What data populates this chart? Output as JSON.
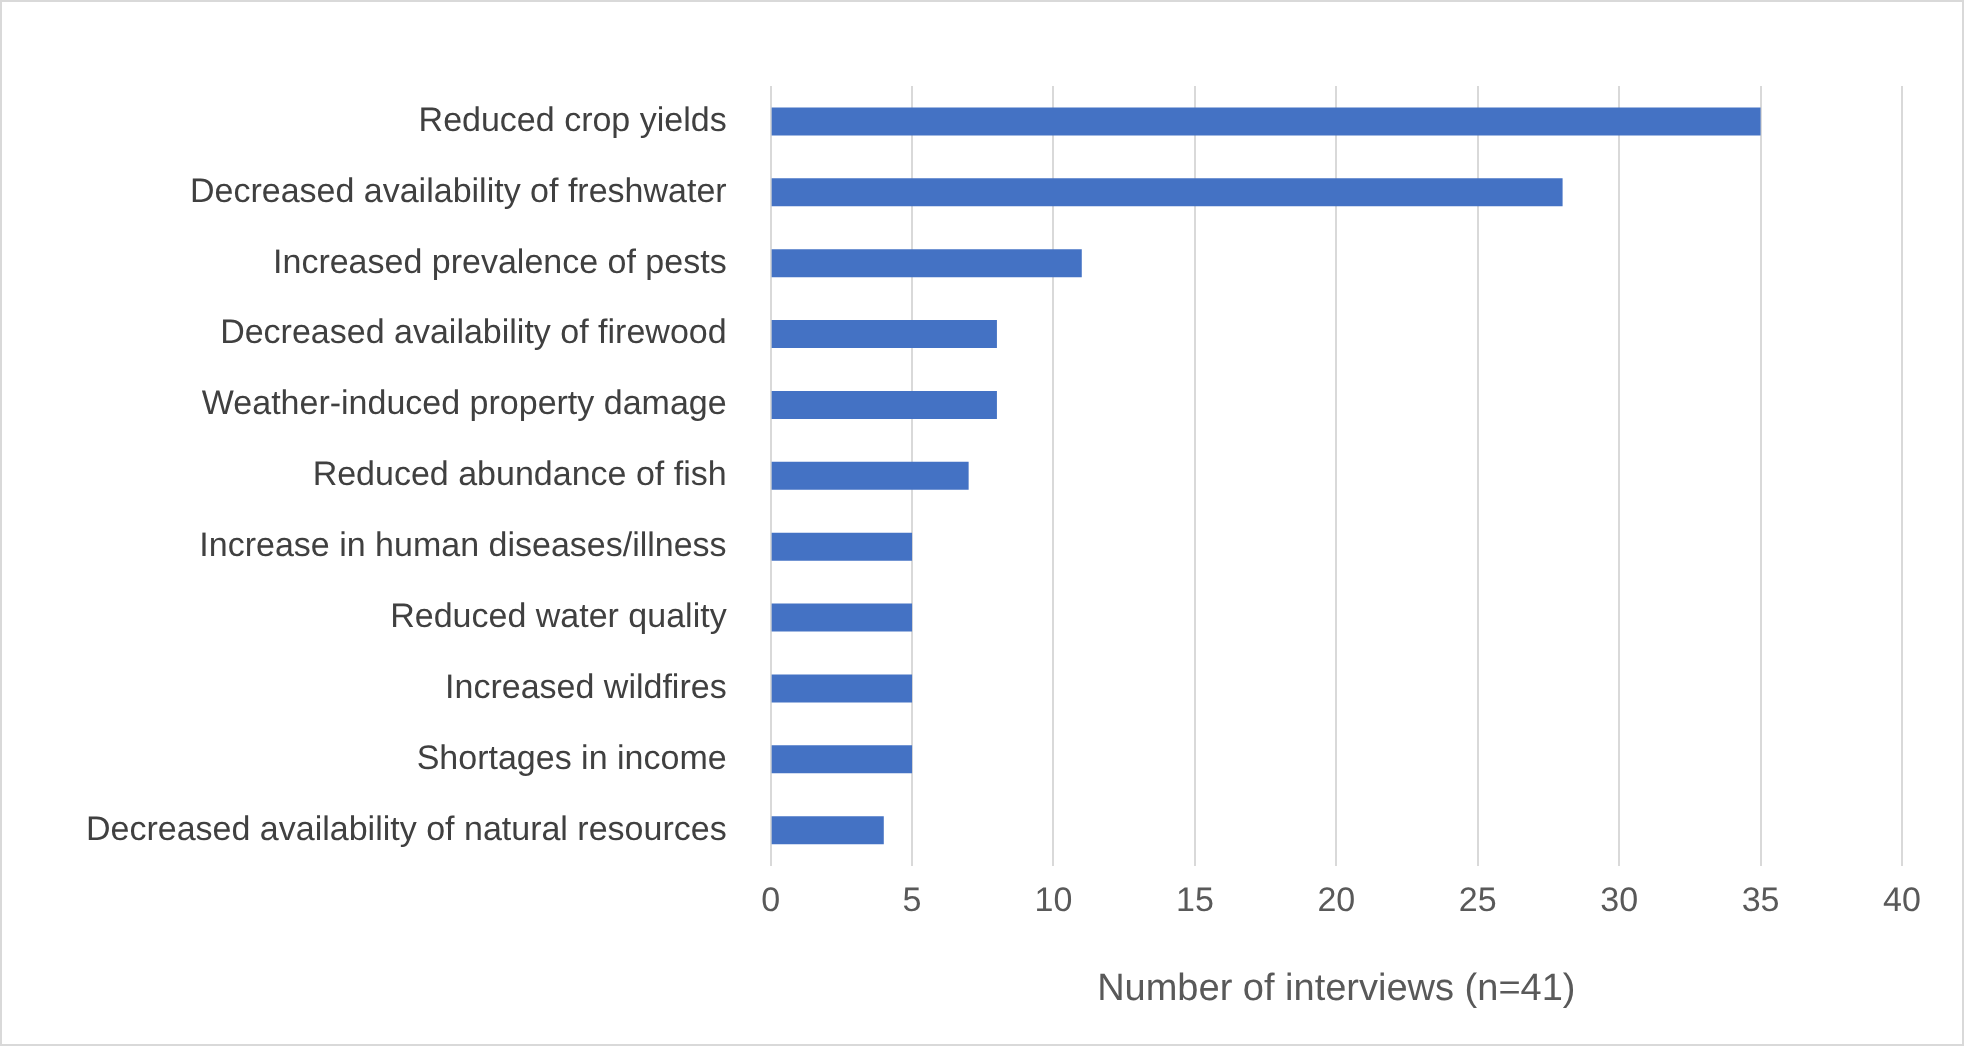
{
  "chart_data": {
    "type": "bar",
    "orientation": "horizontal",
    "categories": [
      "Reduced crop yields",
      "Decreased availability of freshwater",
      "Increased prevalence of pests",
      "Decreased availability of firewood",
      "Weather-induced property damage",
      "Reduced abundance of fish",
      "Increase in human diseases/illness",
      "Reduced water quality",
      "Increased wildfires",
      "Shortages in income",
      "Decreased availability of natural resources"
    ],
    "values": [
      35,
      28,
      11,
      8,
      8,
      7,
      5,
      5,
      5,
      5,
      4
    ],
    "color": "#4472c4",
    "xlabel": "Number of interviews (n=41)",
    "xlim": [
      0,
      40
    ],
    "xticks": [
      0,
      5,
      10,
      15,
      20,
      25,
      30,
      35,
      40
    ],
    "grid": "x",
    "legend": false
  }
}
